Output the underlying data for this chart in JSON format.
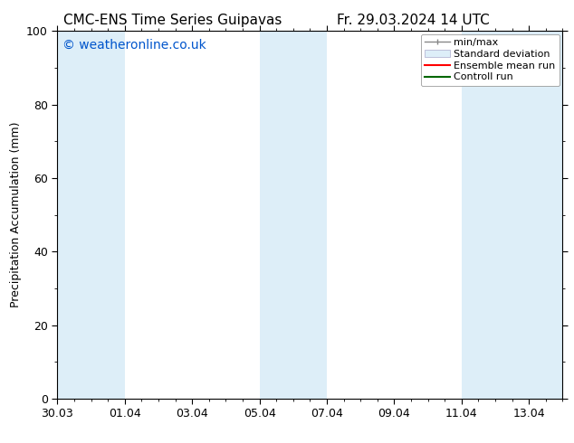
{
  "title_left": "CMC-ENS Time Series Guipavas",
  "title_right": "Fr. 29.03.2024 14 UTC",
  "ylabel": "Precipitation Accumulation (mm)",
  "watermark": "© weatheronline.co.uk",
  "watermark_color": "#0055cc",
  "ylim": [
    0,
    100
  ],
  "yticks": [
    0,
    20,
    40,
    60,
    80,
    100
  ],
  "bg_color": "#ffffff",
  "plot_bg_color": "#ffffff",
  "shaded_band_color": "#ddeef8",
  "xlim_start": 0,
  "xlim_end": 15.0,
  "xtick_labels": [
    "30.03",
    "01.04",
    "03.04",
    "05.04",
    "07.04",
    "09.04",
    "11.04",
    "13.04"
  ],
  "xtick_positions": [
    0,
    2,
    4,
    6,
    8,
    10,
    12,
    14
  ],
  "shaded_bands": [
    {
      "start": 0.0,
      "end": 2.0
    },
    {
      "start": 6.0,
      "end": 8.0
    },
    {
      "start": 12.0,
      "end": 15.0
    }
  ],
  "legend_items": [
    {
      "label": "min/max",
      "color": "#aaaaaa",
      "style": "errorbar"
    },
    {
      "label": "Standard deviation",
      "color": "#ddeef8",
      "style": "box"
    },
    {
      "label": "Ensemble mean run",
      "color": "#ff0000",
      "style": "line"
    },
    {
      "label": "Controll run",
      "color": "#006600",
      "style": "line"
    }
  ],
  "title_fontsize": 11,
  "tick_label_fontsize": 9,
  "ylabel_fontsize": 9,
  "legend_fontsize": 8,
  "watermark_fontsize": 10
}
